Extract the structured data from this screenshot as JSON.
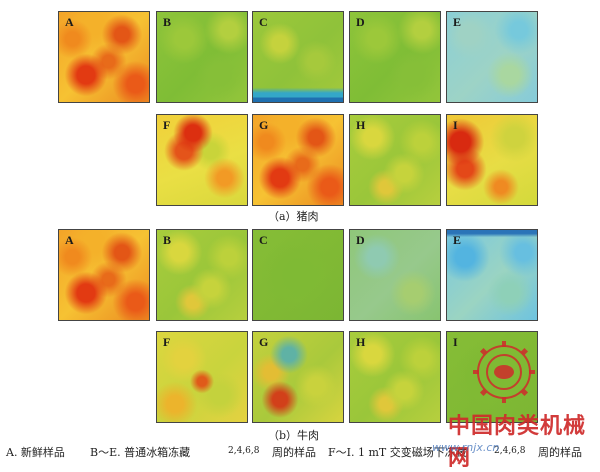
{
  "pork": {
    "caption": "（a）猪肉",
    "panels": [
      {
        "label": "A",
        "map": "red-heavy"
      },
      {
        "label": "B",
        "map": "green"
      },
      {
        "label": "C",
        "map": "green-bluebottom"
      },
      {
        "label": "D",
        "map": "green"
      },
      {
        "label": "E",
        "map": "cyan"
      },
      {
        "label": "F",
        "map": "yellow-orange"
      },
      {
        "label": "G",
        "map": "red-heavy"
      },
      {
        "label": "H",
        "map": "green-yellow"
      },
      {
        "label": "I",
        "map": "yellow-red-left"
      }
    ]
  },
  "beef": {
    "caption": "（b）牛肉",
    "panels": [
      {
        "label": "A",
        "map": "red-heavy"
      },
      {
        "label": "B",
        "map": "green-yellow"
      },
      {
        "label": "C",
        "map": "green-solid"
      },
      {
        "label": "D",
        "map": "green-cyan"
      },
      {
        "label": "E",
        "map": "cyan-deep"
      },
      {
        "label": "F",
        "map": "yellow-green-mix"
      },
      {
        "label": "G",
        "map": "mixed-green-red"
      },
      {
        "label": "H",
        "map": "green-yellow"
      },
      {
        "label": "I",
        "map": "green-solid"
      }
    ]
  },
  "legend": {
    "a": "A. 新鲜样品",
    "b_prefix": "B～E. 普通冰箱冻藏",
    "b_weeks": "2,4,6,8",
    "b_suffix": "周的样品",
    "f_prefix": "F～I. 1 mT 交变磁场下冻藏",
    "f_weeks": "2,4,6,8",
    "f_suffix": "周的样品"
  },
  "watermark": {
    "text": "中国肉类机械网",
    "url": "www.rnjx.cn"
  }
}
